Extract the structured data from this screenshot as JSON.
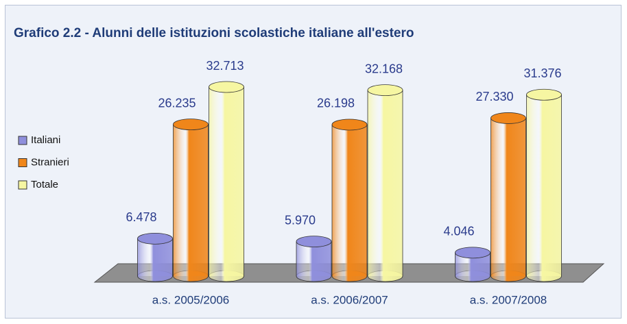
{
  "chart_data": {
    "type": "bar3d",
    "title": "Grafico 2.2 - Alunni delle istituzioni scolastiche italiane all'estero",
    "categories": [
      "a.s. 2005/2006",
      "a.s. 2006/2007",
      "a.s. 2007/2008"
    ],
    "series": [
      {
        "name": "Italiani",
        "color": "#8f8fdc",
        "values": [
          6478,
          5970,
          4046
        ],
        "value_labels": [
          "6.478",
          "5.970",
          "4.046"
        ]
      },
      {
        "name": "Stranieri",
        "color": "#f0861a",
        "values": [
          26235,
          26198,
          27330
        ],
        "value_labels": [
          "26.235",
          "26.198",
          "27.330"
        ]
      },
      {
        "name": "Totale",
        "color": "#f6f6a2",
        "values": [
          32713,
          32168,
          31376
        ],
        "value_labels": [
          "32.713",
          "32.168",
          "31.376"
        ]
      }
    ],
    "legend": "left"
  }
}
